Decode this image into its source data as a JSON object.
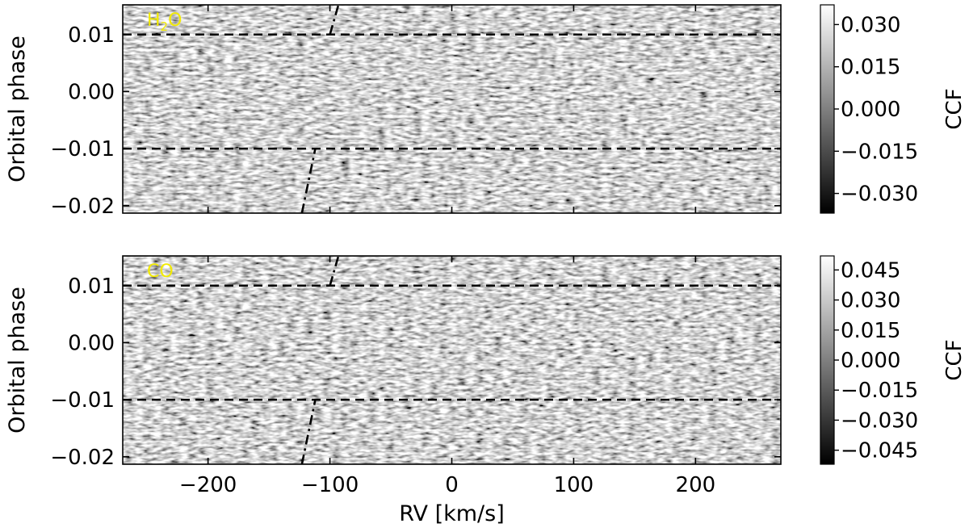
{
  "chart_data": [
    {
      "type": "heatmap",
      "panel": "top",
      "label": "H",
      "label_sub": "2",
      "label_tail": "O",
      "label_color": "#f2ea00",
      "xlim": [
        -270,
        270
      ],
      "ylim": [
        -0.0213,
        0.0152
      ],
      "xticks": [
        -200,
        -100,
        0,
        100,
        200
      ],
      "yticks": [
        0.01,
        0.0,
        -0.01,
        -0.02
      ],
      "ytick_labels": [
        "0.01",
        "0.00",
        "−0.01",
        "−0.02"
      ],
      "ylabel": "Orbital phase",
      "xlabel": "",
      "colormap": "gray",
      "colorbar": {
        "label": "CCF",
        "range": [
          -0.037,
          0.037
        ],
        "ticks": [
          0.03,
          0.015,
          0.0,
          -0.015,
          -0.03
        ],
        "tick_labels": [
          "0.030",
          "0.015",
          "0.000",
          "−0.015",
          "−0.030"
        ]
      },
      "hlines": [
        0.01,
        -0.01
      ],
      "trail": [
        {
          "rv": -123,
          "phase": -0.0213
        },
        {
          "rv": -112,
          "phase": -0.01
        },
        {
          "rv": -100,
          "phase": 0.01
        },
        {
          "rv": -93,
          "phase": 0.0152
        }
      ]
    },
    {
      "type": "heatmap",
      "panel": "bottom",
      "label": "CO",
      "label_color": "#f2ea00",
      "xlim": [
        -270,
        270
      ],
      "ylim": [
        -0.0213,
        0.0152
      ],
      "xticks": [
        -200,
        -100,
        0,
        100,
        200
      ],
      "xtick_labels": [
        "−200",
        "−100",
        "0",
        "100",
        "200"
      ],
      "yticks": [
        0.01,
        0.0,
        -0.01,
        -0.02
      ],
      "ytick_labels": [
        "0.01",
        "0.00",
        "−0.01",
        "−0.02"
      ],
      "ylabel": "Orbital phase",
      "xlabel": "RV [km/s]",
      "colormap": "gray",
      "colorbar": {
        "label": "CCF",
        "range": [
          -0.052,
          0.052
        ],
        "ticks": [
          0.045,
          0.03,
          0.015,
          0.0,
          -0.015,
          -0.03,
          -0.045
        ],
        "tick_labels": [
          "0.045",
          "0.030",
          "0.015",
          "0.000",
          "−0.015",
          "−0.030",
          "−0.045"
        ]
      },
      "hlines": [
        0.01,
        -0.01
      ],
      "trail": [
        {
          "rv": -123,
          "phase": -0.0213
        },
        {
          "rv": -112,
          "phase": -0.01
        },
        {
          "rv": -100,
          "phase": 0.01
        },
        {
          "rv": -93,
          "phase": 0.0152
        }
      ]
    }
  ]
}
